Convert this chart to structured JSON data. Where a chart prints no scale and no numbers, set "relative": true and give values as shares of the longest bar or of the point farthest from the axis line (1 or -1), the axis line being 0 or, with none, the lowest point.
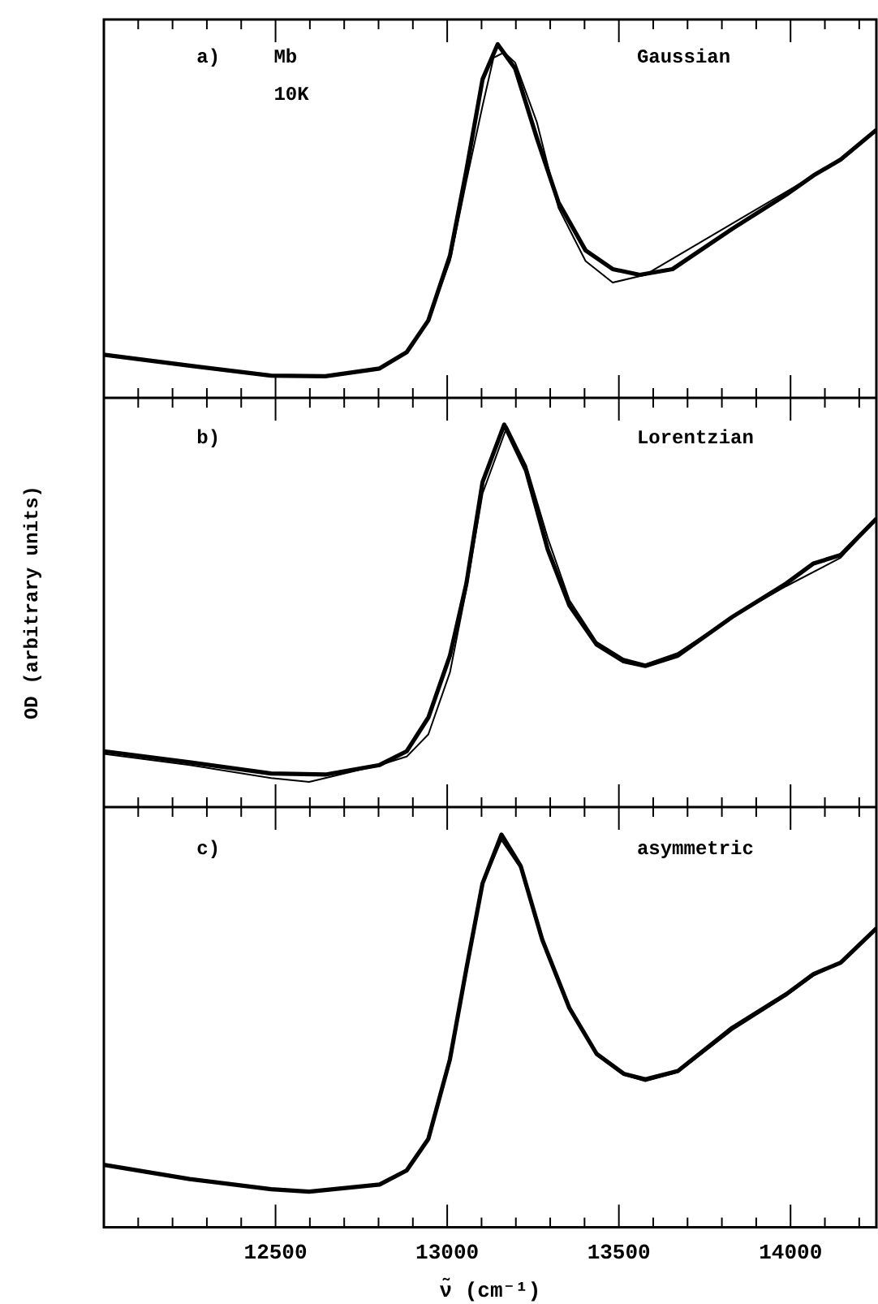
{
  "chart_data": [
    {
      "type": "line",
      "relative": true,
      "annotations": [
        "a)",
        "Mb",
        "10K",
        "Gaussian"
      ],
      "xlim": [
        12000,
        14250
      ],
      "tick_labels": false,
      "xticks": [
        {
          "value": 12100,
          "label": null
        },
        {
          "value": 12200,
          "label": null
        },
        {
          "value": 12300,
          "label": null
        },
        {
          "value": 12400,
          "label": null
        },
        {
          "value": 12500,
          "label": null
        },
        {
          "value": 12600,
          "label": null
        },
        {
          "value": 12700,
          "label": null
        },
        {
          "value": 12800,
          "label": null
        },
        {
          "value": 12900,
          "label": null
        },
        {
          "value": 13000,
          "label": null
        },
        {
          "value": 13100,
          "label": null
        },
        {
          "value": 13200,
          "label": null
        },
        {
          "value": 13300,
          "label": null
        },
        {
          "value": 13400,
          "label": null
        },
        {
          "value": 13500,
          "label": null
        },
        {
          "value": 13600,
          "label": null
        },
        {
          "value": 13700,
          "label": null
        },
        {
          "value": 13800,
          "label": null
        },
        {
          "value": 13900,
          "label": null
        },
        {
          "value": 14000,
          "label": null
        },
        {
          "value": 14100,
          "label": null
        },
        {
          "value": 14200,
          "label": null
        }
      ],
      "series": [
        {
          "color": "#000000",
          "x": [
            12000,
            12250,
            12487,
            12645,
            12803,
            12882,
            12945,
            13008,
            13056,
            13103,
            13147,
            13198,
            13261,
            13324,
            13403,
            13482,
            13561,
            13656,
            13830,
            13988,
            14067,
            14146,
            14250
          ],
          "values": [
            0.122,
            0.091,
            0.063,
            0.061,
            0.083,
            0.129,
            0.219,
            0.402,
            0.644,
            0.901,
            1,
            0.931,
            0.735,
            0.553,
            0.417,
            0.364,
            0.348,
            0.364,
            0.478,
            0.575,
            0.629,
            0.674,
            0.758
          ]
        },
        {
          "color": "#000000",
          "x": [
            12000,
            12250,
            12487,
            12645,
            12803,
            12882,
            12945,
            13008,
            13056,
            13103,
            13135,
            13166,
            13198,
            13261,
            13324,
            13403,
            13482,
            13577,
            13830,
            13988,
            14146,
            14250
          ],
          "values": [
            0.122,
            0.091,
            0.063,
            0.061,
            0.083,
            0.129,
            0.219,
            0.387,
            0.614,
            0.826,
            0.962,
            0.977,
            0.948,
            0.78,
            0.538,
            0.387,
            0.326,
            0.348,
            0.493,
            0.583,
            0.674,
            0.758
          ]
        }
      ]
    },
    {
      "type": "line",
      "relative": true,
      "ylabel": "OD (arbitrary units)",
      "annotations": [
        "b)",
        "Lorentzian"
      ],
      "xlim": [
        12000,
        14250
      ],
      "tick_labels": false,
      "xticks": [
        {
          "value": 12100,
          "label": null
        },
        {
          "value": 12200,
          "label": null
        },
        {
          "value": 12300,
          "label": null
        },
        {
          "value": 12400,
          "label": null
        },
        {
          "value": 12500,
          "label": null
        },
        {
          "value": 12600,
          "label": null
        },
        {
          "value": 12700,
          "label": null
        },
        {
          "value": 12800,
          "label": null
        },
        {
          "value": 12900,
          "label": null
        },
        {
          "value": 13000,
          "label": null
        },
        {
          "value": 13100,
          "label": null
        },
        {
          "value": 13200,
          "label": null
        },
        {
          "value": 13300,
          "label": null
        },
        {
          "value": 13400,
          "label": null
        },
        {
          "value": 13500,
          "label": null
        },
        {
          "value": 13600,
          "label": null
        },
        {
          "value": 13700,
          "label": null
        },
        {
          "value": 13800,
          "label": null
        },
        {
          "value": 13900,
          "label": null
        },
        {
          "value": 14000,
          "label": null
        },
        {
          "value": 14100,
          "label": null
        },
        {
          "value": 14200,
          "label": null
        }
      ],
      "series": [
        {
          "color": "#000000",
          "x": [
            12000,
            12250,
            12487,
            12645,
            12803,
            12882,
            12945,
            13008,
            13056,
            13103,
            13166,
            13230,
            13293,
            13356,
            13435,
            13514,
            13577,
            13672,
            13830,
            13988,
            14067,
            14146,
            14250
          ],
          "values": [
            0.146,
            0.117,
            0.088,
            0.085,
            0.11,
            0.146,
            0.234,
            0.396,
            0.585,
            0.85,
            1,
            0.879,
            0.673,
            0.527,
            0.425,
            0.381,
            0.369,
            0.396,
            0.497,
            0.585,
            0.637,
            0.659,
            0.754
          ]
        },
        {
          "color": "#000000",
          "x": [
            12000,
            12250,
            12487,
            12598,
            12803,
            12882,
            12945,
            13008,
            13056,
            13103,
            13174,
            13230,
            13293,
            13356,
            13435,
            13514,
            13577,
            13672,
            13830,
            13988,
            14146,
            14250
          ],
          "values": [
            0.139,
            0.11,
            0.076,
            0.066,
            0.11,
            0.132,
            0.19,
            0.352,
            0.571,
            0.82,
            0.995,
            0.893,
            0.703,
            0.541,
            0.432,
            0.388,
            0.373,
            0.403,
            0.497,
            0.578,
            0.652,
            0.754
          ]
        }
      ]
    },
    {
      "type": "line",
      "relative": true,
      "xlabel": "ν̃ (cm⁻¹)",
      "annotations": [
        "c)",
        "asymmetric"
      ],
      "xlim": [
        12000,
        14250
      ],
      "tick_labels": "x",
      "xticks": [
        {
          "value": 12100,
          "label": null
        },
        {
          "value": 12200,
          "label": null
        },
        {
          "value": 12300,
          "label": null
        },
        {
          "value": 12400,
          "label": null
        },
        12500,
        {
          "value": 12600,
          "label": null
        },
        {
          "value": 12700,
          "label": null
        },
        {
          "value": 12800,
          "label": null
        },
        {
          "value": 12900,
          "label": null
        },
        13000,
        {
          "value": 13100,
          "label": null
        },
        {
          "value": 13200,
          "label": null
        },
        {
          "value": 13300,
          "label": null
        },
        {
          "value": 13400,
          "label": null
        },
        13500,
        {
          "value": 13600,
          "label": null
        },
        {
          "value": 13700,
          "label": null
        },
        {
          "value": 13800,
          "label": null
        },
        {
          "value": 13900,
          "label": null
        },
        14000,
        {
          "value": 14100,
          "label": null
        },
        {
          "value": 14200,
          "label": null
        }
      ],
      "series": [
        {
          "color": "#000000",
          "x": [
            12000,
            12250,
            12487,
            12598,
            12803,
            12882,
            12945,
            13008,
            13056,
            13103,
            13158,
            13214,
            13277,
            13356,
            13435,
            13514,
            13577,
            13672,
            13830,
            13988,
            14067,
            14146,
            14250
          ],
          "values": [
            0.159,
            0.123,
            0.097,
            0.091,
            0.109,
            0.145,
            0.225,
            0.428,
            0.659,
            0.876,
            1,
            0.92,
            0.732,
            0.558,
            0.442,
            0.391,
            0.377,
            0.398,
            0.508,
            0.594,
            0.645,
            0.674,
            0.761
          ]
        },
        {
          "color": "#000000",
          "x": [
            12000,
            12250,
            12487,
            12598,
            12803,
            12882,
            12945,
            13008,
            13056,
            13103,
            13158,
            13214,
            13277,
            13356,
            13435,
            13514,
            13577,
            13672,
            13830,
            13988,
            14067,
            14146,
            14250
          ],
          "values": [
            0.159,
            0.123,
            0.097,
            0.091,
            0.109,
            0.145,
            0.225,
            0.428,
            0.659,
            0.873,
            0.986,
            0.914,
            0.727,
            0.555,
            0.439,
            0.388,
            0.372,
            0.395,
            0.502,
            0.59,
            0.641,
            0.674,
            0.761
          ]
        }
      ]
    }
  ]
}
